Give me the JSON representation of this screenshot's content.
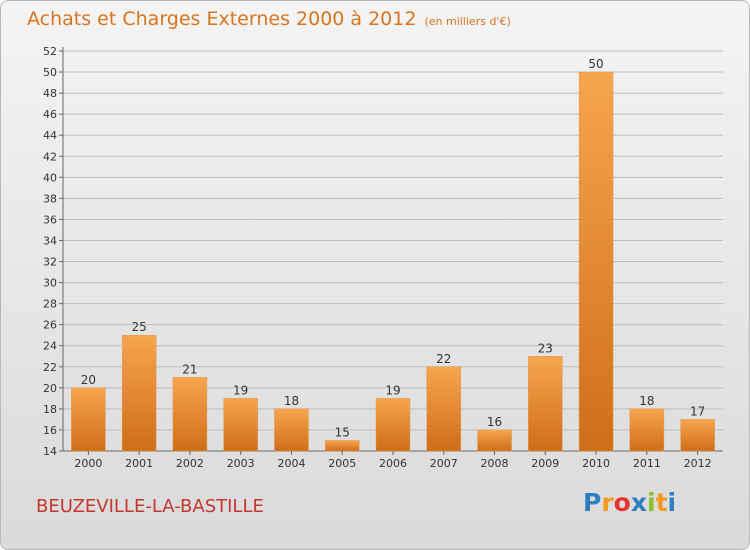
{
  "title": "Achats et Charges Externes 2000 à 2012",
  "subtitle": "(en milliers d'€)",
  "commune": "BEUZEVILLE-LA-BASTILLE",
  "brand": {
    "letters": [
      "P",
      "r",
      "o",
      "x",
      "i",
      "t",
      "i"
    ],
    "colors": [
      "#2d7fc1",
      "#f29a1f",
      "#e5342f",
      "#2d7fc1",
      "#8cbf2b",
      "#f29a1f",
      "#2d7fc1"
    ]
  },
  "colors": {
    "bar_top": "#f7a54f",
    "bar_bottom": "#cf6d1a",
    "title": "#d9741f",
    "commune": "#c4372f"
  },
  "chart_data": {
    "type": "bar",
    "categories": [
      "2000",
      "2001",
      "2002",
      "2003",
      "2004",
      "2005",
      "2006",
      "2007",
      "2008",
      "2009",
      "2010",
      "2011",
      "2012"
    ],
    "values": [
      20,
      25,
      21,
      19,
      18,
      15,
      19,
      22,
      16,
      23,
      50,
      18,
      17
    ],
    "ylim": [
      14,
      52
    ],
    "yticks": [
      14,
      16,
      18,
      20,
      22,
      24,
      26,
      28,
      30,
      32,
      34,
      36,
      38,
      40,
      42,
      44,
      46,
      48,
      50,
      52
    ],
    "grid": true,
    "show_value_labels": true
  }
}
